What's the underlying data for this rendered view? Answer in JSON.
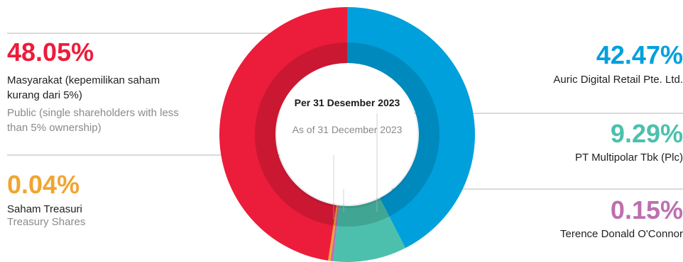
{
  "chart_data": {
    "type": "pie",
    "center_title": "Per 31 Desember 2023",
    "center_subtitle": "As of 31 December 2023",
    "slices": [
      {
        "label": "Auric Digital Retail Pte. Ltd.",
        "label_en": "",
        "value": 42.47,
        "display": "42.47%",
        "color": "#00a0dc"
      },
      {
        "label": "PT Multipolar Tbk (Plc)",
        "label_en": "",
        "value": 9.29,
        "display": "9.29%",
        "color": "#4cc0ad"
      },
      {
        "label": "Terence Donald O'Connor",
        "label_en": "",
        "value": 0.15,
        "display": "0.15%",
        "color": "#bd6fb0"
      },
      {
        "label": "Saham Treasuri",
        "label_en": "Treasury Shares",
        "value": 0.04,
        "display": "0.04%",
        "color": "#f0a531"
      },
      {
        "label": "Masyarakat (kepemilikan saham kurang dari 5%)",
        "label_en": "Public (single shareholders with less than 5% ownership)",
        "value": 48.05,
        "display": "48.05%",
        "color": "#ec1c3b"
      }
    ]
  }
}
